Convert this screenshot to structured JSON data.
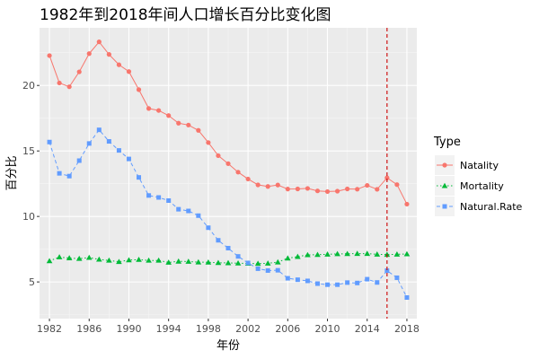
{
  "chart_data": {
    "type": "line",
    "title": "1982年到2018年间人口增长百分比变化图",
    "xlabel": "年份",
    "ylabel": "百分比",
    "x": [
      1982,
      1983,
      1984,
      1985,
      1986,
      1987,
      1988,
      1989,
      1990,
      1991,
      1992,
      1993,
      1994,
      1995,
      1996,
      1997,
      1998,
      1999,
      2000,
      2001,
      2002,
      2003,
      2004,
      2005,
      2006,
      2007,
      2008,
      2009,
      2010,
      2011,
      2012,
      2013,
      2014,
      2015,
      2016,
      2017,
      2018
    ],
    "xlim": [
      1981,
      2019
    ],
    "ylim": [
      2.2,
      24.4
    ],
    "x_ticks": [
      1982,
      1986,
      1990,
      1994,
      1998,
      2002,
      2006,
      2010,
      2014,
      2018
    ],
    "y_ticks": [
      5,
      10,
      15,
      20
    ],
    "grid": true,
    "vline": 2016,
    "legend": {
      "title": "Type",
      "position": "right"
    },
    "series": [
      {
        "name": "Natality",
        "color": "#F8766D",
        "linetype": "solid",
        "marker": "circle",
        "values": [
          22.28,
          20.19,
          19.9,
          21.04,
          22.43,
          23.33,
          22.37,
          21.58,
          21.06,
          19.68,
          18.24,
          18.09,
          17.7,
          17.12,
          16.98,
          16.57,
          15.64,
          14.64,
          14.03,
          13.38,
          12.86,
          12.41,
          12.29,
          12.4,
          12.09,
          12.1,
          12.14,
          11.95,
          11.9,
          11.93,
          12.1,
          12.08,
          12.37,
          12.07,
          12.95,
          12.43,
          10.94
        ]
      },
      {
        "name": "Mortality",
        "color": "#00BA38",
        "linetype": "dotted",
        "marker": "triangle",
        "values": [
          6.6,
          6.9,
          6.82,
          6.78,
          6.86,
          6.72,
          6.64,
          6.54,
          6.67,
          6.7,
          6.64,
          6.64,
          6.49,
          6.57,
          6.56,
          6.51,
          6.5,
          6.46,
          6.45,
          6.43,
          6.41,
          6.4,
          6.42,
          6.51,
          6.81,
          6.93,
          7.06,
          7.08,
          7.11,
          7.14,
          7.15,
          7.16,
          7.16,
          7.11,
          7.09,
          7.11,
          7.13
        ]
      },
      {
        "name": "Natural.Rate",
        "color": "#619CFF",
        "linetype": "dashed",
        "marker": "square",
        "values": [
          15.68,
          13.29,
          13.08,
          14.26,
          15.57,
          16.61,
          15.73,
          15.04,
          14.39,
          12.98,
          11.6,
          11.45,
          11.21,
          10.55,
          10.42,
          10.06,
          9.14,
          8.18,
          7.58,
          6.95,
          6.45,
          6.01,
          5.87,
          5.89,
          5.28,
          5.17,
          5.08,
          4.87,
          4.79,
          4.79,
          4.95,
          4.92,
          5.21,
          4.96,
          5.86,
          5.32,
          3.81
        ]
      }
    ]
  }
}
